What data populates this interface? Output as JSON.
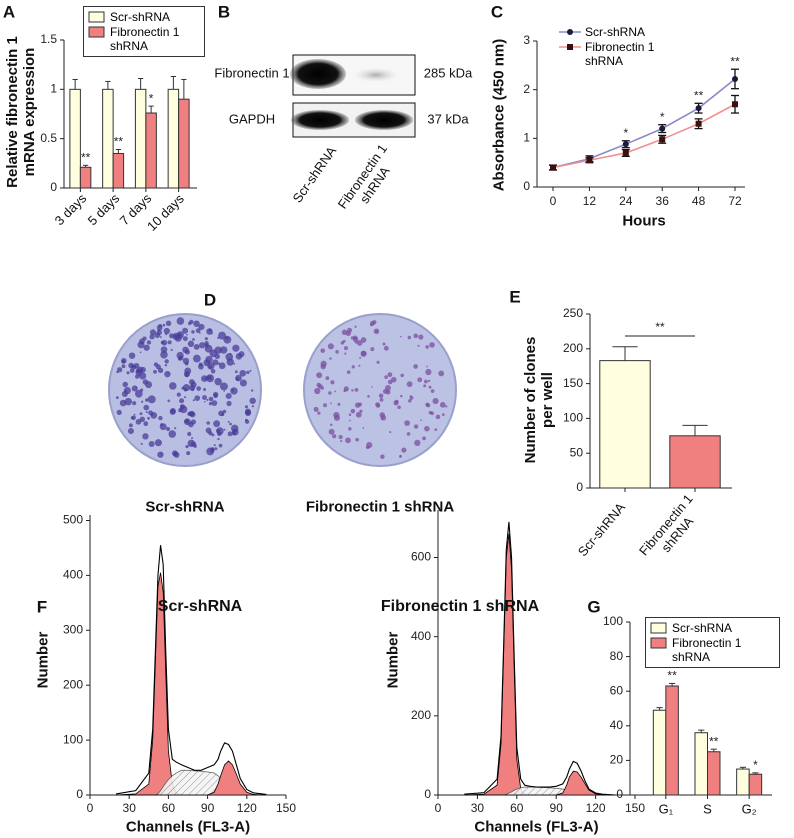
{
  "figure": {
    "panel_b": {
      "letter": "B",
      "rows": [
        {
          "label": "Fibronectin 1",
          "size": "285 kDa"
        },
        {
          "label": "GAPDH",
          "size": "37 kDa"
        }
      ],
      "lanes": [
        "Scr-shRNA",
        "Fibronectin 1 shRNA"
      ]
    },
    "panel_d": {
      "letter": "D",
      "plates": [
        "Scr-shRNA",
        "Fibronectin 1 shRNA"
      ]
    }
  },
  "chart_data": [
    {
      "panel": "A",
      "type": "bar",
      "ylabel": "Relative fibronectin 1 mRNA expression",
      "categories": [
        "3 days",
        "5 days",
        "7 days",
        "10 days"
      ],
      "series": [
        {
          "name": "Scr-shRNA",
          "color": "#ffffe0",
          "values": [
            1,
            1,
            1,
            1
          ],
          "errors": [
            0.1,
            0.08,
            0.11,
            0.13
          ]
        },
        {
          "name": "Fibronectin 1 shRNA",
          "color": "#f08080",
          "values": [
            0.21,
            0.35,
            0.76,
            0.9
          ],
          "errors": [
            0.02,
            0.04,
            0.07,
            0.2
          ]
        }
      ],
      "edgecolor": "#333333",
      "ylim": [
        0,
        1.5
      ],
      "yticks": [
        0,
        0.5,
        1,
        1.5
      ],
      "annotations": [
        {
          "text": "**",
          "category": 0,
          "series": 1
        },
        {
          "text": "**",
          "category": 1,
          "series": 1
        },
        {
          "text": "*",
          "category": 2,
          "series": 1
        }
      ],
      "legend": "upper right",
      "legend_frame": true
    },
    {
      "panel": "C",
      "type": "line",
      "xlabel": "Hours",
      "ylabel": "Absorbance (450 nm)",
      "categories": [
        "0",
        "12",
        "24",
        "36",
        "48",
        "72"
      ],
      "series": [
        {
          "name": "Scr-shRNA",
          "color": "#8a8ac8",
          "marker": "circle",
          "marker_color": "#1a1a3a",
          "values": [
            0.4,
            0.58,
            0.88,
            1.2,
            1.62,
            2.22
          ],
          "errors": [
            0.05,
            0.06,
            0.07,
            0.08,
            0.1,
            0.2
          ]
        },
        {
          "name": "Fibronectin 1 shRNA",
          "color": "#f09090",
          "marker": "square",
          "marker_color": "#3a1010",
          "values": [
            0.4,
            0.55,
            0.7,
            0.98,
            1.3,
            1.7
          ],
          "errors": [
            0.05,
            0.05,
            0.07,
            0.08,
            0.1,
            0.18
          ]
        }
      ],
      "ylim": [
        0,
        3
      ],
      "yticks": [
        0,
        1,
        2,
        3
      ],
      "annotations": [
        {
          "text": "*",
          "category": 2
        },
        {
          "text": "*",
          "category": 3
        },
        {
          "text": "**",
          "category": 4
        },
        {
          "text": "**",
          "category": 5
        }
      ],
      "legend": "upper left",
      "legend_frame": false
    },
    {
      "panel": "E",
      "type": "bar",
      "ylabel": "Number of clones per well",
      "categories": [
        "Scr-shRNA",
        "Fibronectin 1 shRNA"
      ],
      "series": [
        {
          "color": [
            "#ffffe0",
            "#f08080"
          ],
          "values": [
            183,
            75
          ],
          "errors": [
            20,
            15
          ]
        }
      ],
      "edgecolor": "#333333",
      "ylim": [
        0,
        250
      ],
      "yticks": [
        0,
        50,
        100,
        150,
        200,
        250
      ],
      "significance": {
        "text": "**",
        "between": [
          0,
          1
        ]
      }
    },
    {
      "panel": "F",
      "type": "area",
      "title": "Scr-shRNA",
      "xlabel": "Channels (FL3-A)",
      "ylabel": "Number",
      "x": [
        20,
        35,
        45,
        48,
        50,
        52,
        54,
        56,
        58,
        60,
        63,
        66,
        70,
        75,
        80,
        85,
        90,
        95,
        98,
        100,
        103,
        106,
        109,
        112,
        115,
        120,
        125,
        135
      ],
      "series": [
        {
          "color": "#000000",
          "fill": "#f08080",
          "values": [
            0,
            2,
            20,
            100,
            240,
            380,
            405,
            370,
            220,
            80,
            20,
            4,
            0,
            0,
            0,
            0,
            0,
            0,
            0,
            0,
            0,
            0,
            0,
            0,
            0,
            0,
            0,
            0
          ]
        },
        {
          "color": "#555555",
          "fill": "hatch",
          "values": [
            0,
            0,
            0,
            0,
            0,
            2,
            8,
            15,
            22,
            28,
            35,
            40,
            45,
            45,
            44,
            43,
            42,
            40,
            35,
            30,
            25,
            20,
            15,
            10,
            5,
            2,
            0,
            0
          ]
        },
        {
          "color": "#000000",
          "fill": "#f08080",
          "values": [
            0,
            0,
            0,
            0,
            0,
            0,
            0,
            0,
            0,
            0,
            0,
            0,
            0,
            0,
            0,
            0,
            0,
            5,
            20,
            35,
            55,
            62,
            55,
            38,
            20,
            5,
            1,
            0
          ]
        },
        {
          "color": "#000000",
          "values": [
            2,
            8,
            40,
            120,
            260,
            400,
            455,
            420,
            260,
            120,
            65,
            60,
            55,
            50,
            45,
            45,
            50,
            55,
            65,
            80,
            95,
            92,
            80,
            55,
            30,
            10,
            4,
            1
          ]
        }
      ],
      "xlim": [
        0,
        150
      ],
      "xticks": [
        0,
        30,
        60,
        90,
        120,
        150
      ],
      "ylim": [
        0,
        510
      ],
      "yticks": [
        0,
        100,
        200,
        300,
        400,
        500
      ]
    },
    {
      "type": "area",
      "title": "Fibronectin 1 shRNA",
      "xlabel": "Channels (FL3-A)",
      "ylabel": "Number",
      "x": [
        20,
        35,
        45,
        48,
        50,
        52,
        54,
        56,
        58,
        60,
        63,
        66,
        70,
        75,
        80,
        85,
        90,
        95,
        98,
        100,
        103,
        106,
        109,
        112,
        115,
        120,
        125,
        135
      ],
      "series": [
        {
          "color": "#000000",
          "fill": "#f08080",
          "values": [
            0,
            2,
            25,
            130,
            360,
            600,
            660,
            570,
            320,
            90,
            15,
            2,
            0,
            0,
            0,
            0,
            0,
            0,
            0,
            0,
            0,
            0,
            0,
            0,
            0,
            0,
            0,
            0
          ]
        },
        {
          "color": "#555555",
          "fill": "hatch",
          "values": [
            0,
            0,
            0,
            0,
            0,
            2,
            5,
            8,
            12,
            15,
            18,
            20,
            20,
            20,
            19,
            18,
            17,
            15,
            12,
            10,
            8,
            6,
            4,
            2,
            1,
            0,
            0,
            0
          ]
        },
        {
          "color": "#000000",
          "fill": "#f08080",
          "values": [
            0,
            0,
            0,
            0,
            0,
            0,
            0,
            0,
            0,
            0,
            0,
            0,
            0,
            0,
            0,
            0,
            0,
            5,
            25,
            45,
            60,
            58,
            45,
            28,
            12,
            3,
            1,
            0
          ]
        },
        {
          "color": "#000000",
          "values": [
            2,
            6,
            40,
            150,
            380,
            620,
            690,
            600,
            350,
            120,
            40,
            25,
            22,
            20,
            20,
            20,
            22,
            28,
            45,
            65,
            85,
            80,
            60,
            35,
            15,
            5,
            2,
            0
          ]
        }
      ],
      "xlim": [
        0,
        150
      ],
      "xticks": [
        0,
        30,
        60,
        90,
        120,
        150
      ],
      "ylim": [
        0,
        720
      ],
      "yticks": [
        0,
        200,
        400,
        600
      ]
    },
    {
      "panel": "G",
      "type": "bar",
      "categories": [
        "G₁",
        "S",
        "G₂"
      ],
      "series": [
        {
          "name": "Scr-shRNA",
          "color": "#ffffe0",
          "values": [
            49,
            36,
            15
          ],
          "errors": [
            1.5,
            1.5,
            1
          ]
        },
        {
          "name": "Fibronectin 1 shRNA",
          "color": "#f08080",
          "values": [
            63,
            25,
            12
          ],
          "errors": [
            1.5,
            1.5,
            0.8
          ]
        }
      ],
      "edgecolor": "#333333",
      "ylim": [
        0,
        100
      ],
      "yticks": [
        0,
        20,
        40,
        60,
        80,
        100
      ],
      "annotations": [
        {
          "text": "**",
          "category": 0,
          "series": 1
        },
        {
          "text": "**",
          "category": 1,
          "series": 1
        },
        {
          "text": "*",
          "category": 2,
          "series": 1
        }
      ],
      "legend": "upper right",
      "legend_frame": true
    }
  ]
}
